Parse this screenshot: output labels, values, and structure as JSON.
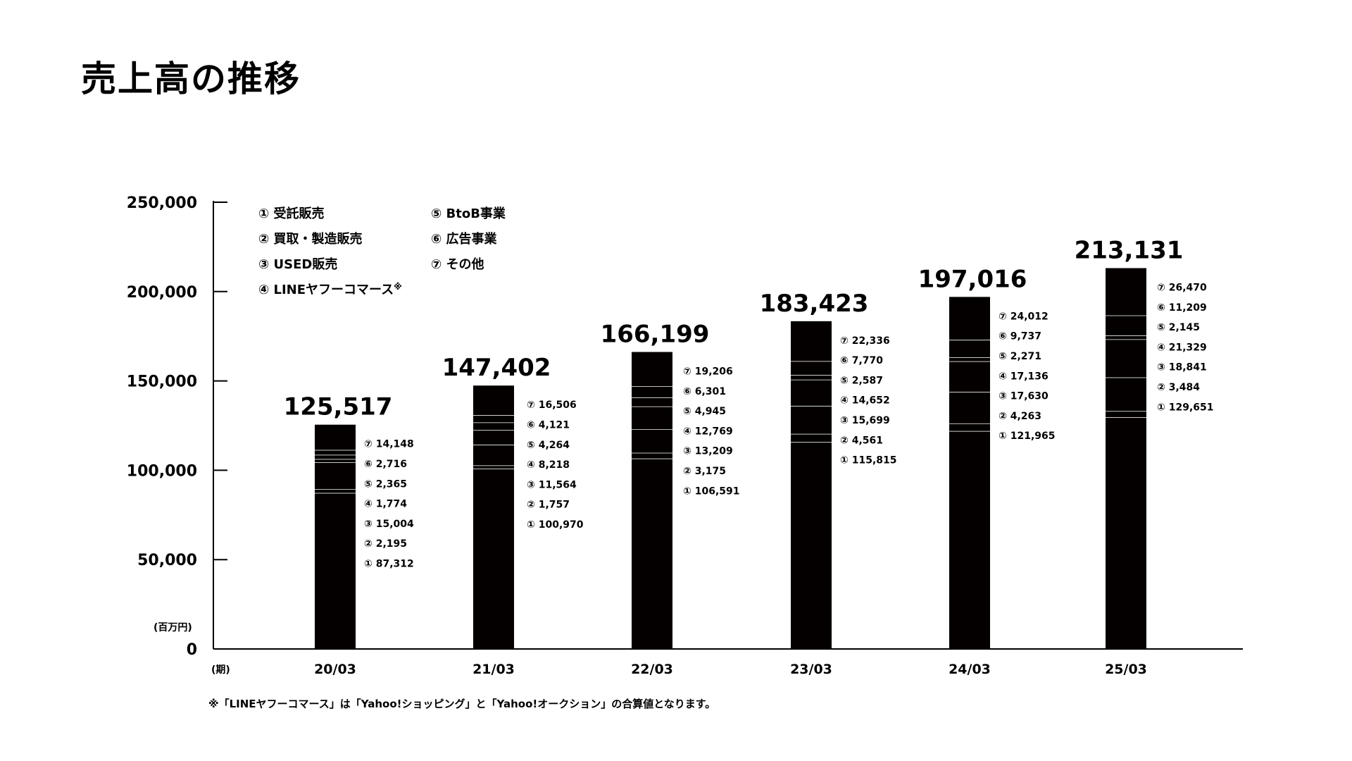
{
  "title": "売上高の推移",
  "footnote": "※「LINEヤフーコマース」は「Yahoo!ショッピング」と「Yahoo!オークション」の合算値となります。",
  "y_unit_label": "(百万円)",
  "x_unit_label": "(期)",
  "legend_marker_note": "※",
  "colors": {
    "bar": "#050000",
    "separator": "#ffffff",
    "axis": "#000000",
    "text": "#000000"
  },
  "chart_data": {
    "type": "bar",
    "stacked": true,
    "categories": [
      "20/03",
      "21/03",
      "22/03",
      "23/03",
      "24/03",
      "25/03"
    ],
    "ylim": [
      0,
      250000
    ],
    "yticks": [
      0,
      50000,
      100000,
      150000,
      200000,
      250000
    ],
    "ytick_labels": [
      "0",
      "50,000",
      "100,000",
      "150,000",
      "200,000",
      "250,000"
    ],
    "totals": [
      125517,
      147402,
      166199,
      183423,
      197016,
      213131
    ],
    "total_labels": [
      "125,517",
      "147,402",
      "166,199",
      "183,423",
      "197,016",
      "213,131"
    ],
    "series": [
      {
        "name": "① 受託販売",
        "marker": "①",
        "values": [
          87312,
          100970,
          106591,
          115815,
          121965,
          129651
        ],
        "value_labels": [
          "87,312",
          "100,970",
          "106,591",
          "115,815",
          "121,965",
          "129,651"
        ]
      },
      {
        "name": "② 買取・製造販売",
        "marker": "②",
        "values": [
          2195,
          1757,
          3175,
          4561,
          4263,
          3484
        ],
        "value_labels": [
          "2,195",
          "1,757",
          "3,175",
          "4,561",
          "4,263",
          "3,484"
        ]
      },
      {
        "name": "③ USED販売",
        "marker": "③",
        "values": [
          15004,
          11564,
          13209,
          15699,
          17630,
          18841
        ],
        "value_labels": [
          "15,004",
          "11,564",
          "13,209",
          "15,699",
          "17,630",
          "18,841"
        ]
      },
      {
        "name": "④ LINEヤフーコマース",
        "marker": "④",
        "values": [
          1774,
          8218,
          12769,
          14652,
          17136,
          21329
        ],
        "value_labels": [
          "1,774",
          "8,218",
          "12,769",
          "14,652",
          "17,136",
          "21,329"
        ]
      },
      {
        "name": "⑤ BtoB事業",
        "marker": "⑤",
        "values": [
          2365,
          4264,
          4945,
          2587,
          2271,
          2145
        ],
        "value_labels": [
          "2,365",
          "4,264",
          "4,945",
          "2,587",
          "2,271",
          "2,145"
        ]
      },
      {
        "name": "⑥ 広告事業",
        "marker": "⑥",
        "values": [
          2716,
          4121,
          6301,
          7770,
          9737,
          11209
        ],
        "value_labels": [
          "2,716",
          "4,121",
          "6,301",
          "7,770",
          "9,737",
          "11,209"
        ]
      },
      {
        "name": "⑦ その他",
        "marker": "⑦",
        "values": [
          14148,
          16506,
          19206,
          22336,
          24012,
          26470
        ],
        "value_labels": [
          "14,148",
          "16,506",
          "19,206",
          "22,336",
          "24,012",
          "26,470"
        ]
      }
    ],
    "legend_placement": "top-left",
    "grid": false
  }
}
